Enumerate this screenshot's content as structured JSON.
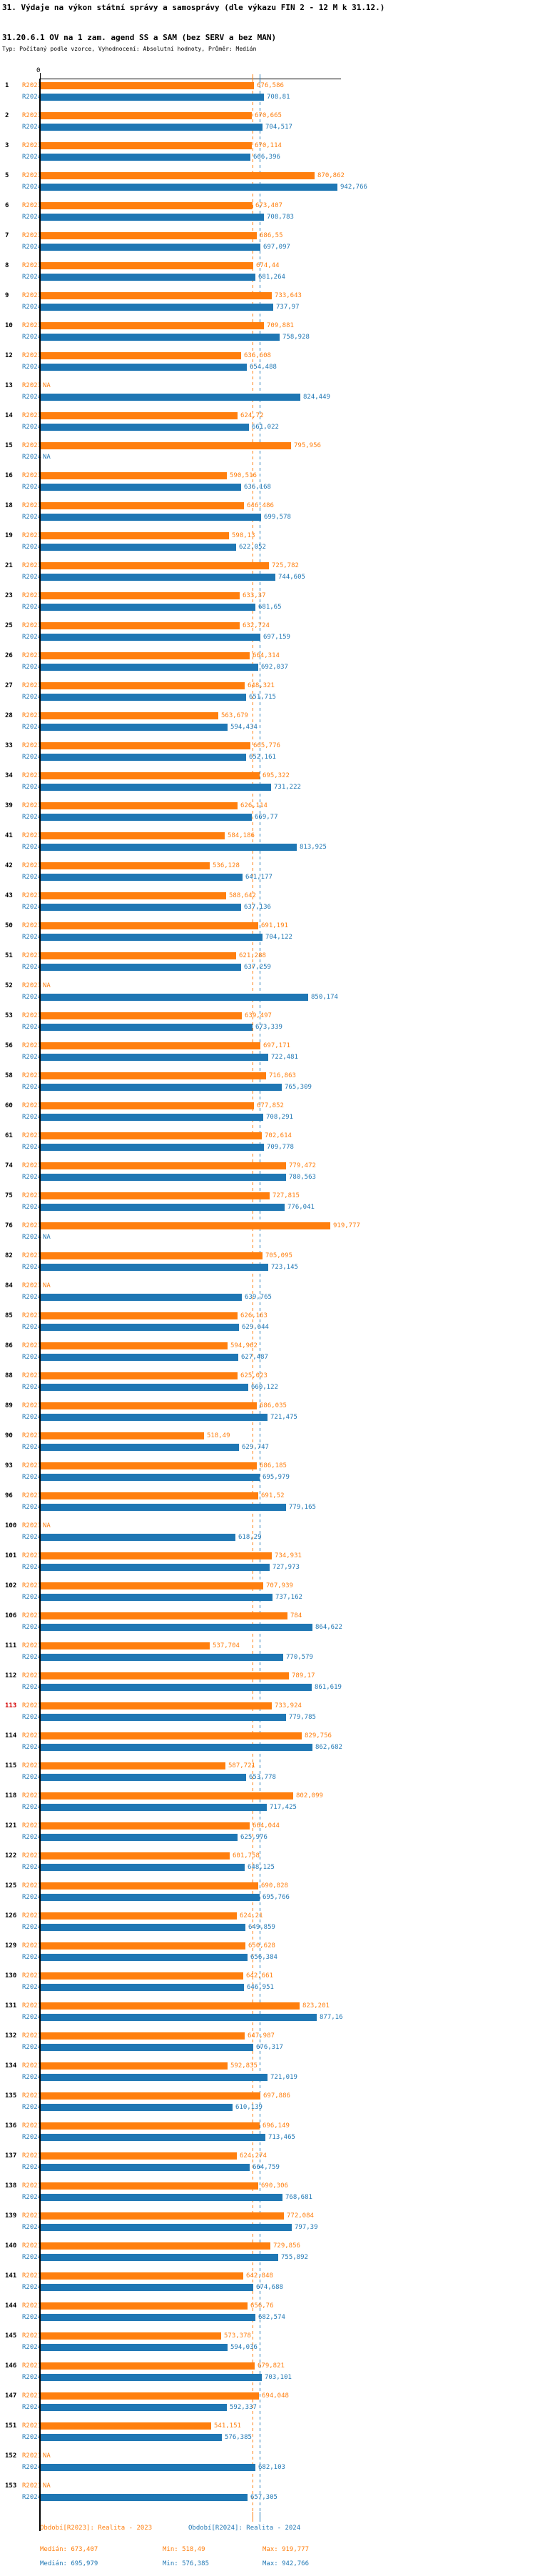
{
  "header": {
    "title": "31. Výdaje na výkon státní správy a samosprávy (dle výkazu FIN 2 - 12 M k 31.12.)",
    "subtitle": "31.20.6.1 OV na 1 zam. agend SS a SAM (bez SERV a bez MAN)",
    "meta": "Typ: Počítaný podle vzorce, Vyhodnocení: Absolutní hodnoty, Průměr: Medián"
  },
  "axis": {
    "zero_label": "0"
  },
  "colors": {
    "r2023": "#ff7f0e",
    "r2024": "#1f77b4",
    "highlight_id": "#d40000"
  },
  "chart_data": {
    "type": "bar",
    "orientation": "horizontal",
    "series_labels": {
      "r2023": "R2023",
      "r2024": "R2024"
    },
    "na_label": "NA",
    "value_note": "Czech decimal comma formatting, values verbatim from labels",
    "xlim": [
      0,
      950
    ],
    "medians": {
      "r2023": "673,407",
      "r2024": "695,979"
    },
    "min": {
      "r2023": "518,49",
      "r2024": "576,385"
    },
    "max": {
      "r2023": "919,777",
      "r2024": "942,766"
    },
    "highlight_ids": [
      "113"
    ],
    "rows": [
      {
        "id": "1",
        "r2023": "676,586",
        "r2024": "708,81"
      },
      {
        "id": "2",
        "r2023": "670,665",
        "r2024": "704,517"
      },
      {
        "id": "3",
        "r2023": "670,114",
        "r2024": "666,396"
      },
      {
        "id": "5",
        "r2023": "870,862",
        "r2024": "942,766"
      },
      {
        "id": "6",
        "r2023": "673,407",
        "r2024": "708,783"
      },
      {
        "id": "7",
        "r2023": "686,55",
        "r2024": "697,097"
      },
      {
        "id": "8",
        "r2023": "674,44",
        "r2024": "681,264"
      },
      {
        "id": "9",
        "r2023": "733,643",
        "r2024": "737,97"
      },
      {
        "id": "10",
        "r2023": "709,881",
        "r2024": "758,928"
      },
      {
        "id": "12",
        "r2023": "636,608",
        "r2024": "654,488"
      },
      {
        "id": "13",
        "r2023": "NA",
        "r2024": "824,449"
      },
      {
        "id": "14",
        "r2023": "624,72",
        "r2024": "661,022"
      },
      {
        "id": "15",
        "r2023": "795,956",
        "r2024": "NA"
      },
      {
        "id": "16",
        "r2023": "590,516",
        "r2024": "636,168"
      },
      {
        "id": "18",
        "r2023": "646,486",
        "r2024": "699,578"
      },
      {
        "id": "19",
        "r2023": "598,13",
        "r2024": "622,052"
      },
      {
        "id": "21",
        "r2023": "725,782",
        "r2024": "744,605"
      },
      {
        "id": "23",
        "r2023": "633,37",
        "r2024": "681,65"
      },
      {
        "id": "25",
        "r2023": "632,724",
        "r2024": "697,159"
      },
      {
        "id": "26",
        "r2023": "664,314",
        "r2024": "692,037"
      },
      {
        "id": "27",
        "r2023": "648,321",
        "r2024": "651,715"
      },
      {
        "id": "28",
        "r2023": "563,679",
        "r2024": "594,434"
      },
      {
        "id": "33",
        "r2023": "665,776",
        "r2024": "652,161"
      },
      {
        "id": "34",
        "r2023": "695,322",
        "r2024": "731,222"
      },
      {
        "id": "39",
        "r2023": "626,114",
        "r2024": "669,77"
      },
      {
        "id": "41",
        "r2023": "584,186",
        "r2024": "813,925"
      },
      {
        "id": "42",
        "r2023": "536,128",
        "r2024": "641,177"
      },
      {
        "id": "43",
        "r2023": "588,642",
        "r2024": "637,136"
      },
      {
        "id": "50",
        "r2023": "691,191",
        "r2024": "704,122"
      },
      {
        "id": "51",
        "r2023": "621,288",
        "r2024": "637,259"
      },
      {
        "id": "52",
        "r2023": "NA",
        "r2024": "850,174"
      },
      {
        "id": "53",
        "r2023": "639,497",
        "r2024": "673,339"
      },
      {
        "id": "56",
        "r2023": "697,171",
        "r2024": "722,481"
      },
      {
        "id": "58",
        "r2023": "716,863",
        "r2024": "765,309"
      },
      {
        "id": "60",
        "r2023": "677,852",
        "r2024": "708,291"
      },
      {
        "id": "61",
        "r2023": "702,614",
        "r2024": "709,778"
      },
      {
        "id": "74",
        "r2023": "779,472",
        "r2024": "780,563"
      },
      {
        "id": "75",
        "r2023": "727,815",
        "r2024": "776,041"
      },
      {
        "id": "76",
        "r2023": "919,777",
        "r2024": "NA"
      },
      {
        "id": "82",
        "r2023": "705,095",
        "r2024": "723,145"
      },
      {
        "id": "84",
        "r2023": "NA",
        "r2024": "639,765"
      },
      {
        "id": "85",
        "r2023": "626,163",
        "r2024": "629,644"
      },
      {
        "id": "86",
        "r2023": "594,962",
        "r2024": "627,487"
      },
      {
        "id": "88",
        "r2023": "625,023",
        "r2024": "660,122"
      },
      {
        "id": "89",
        "r2023": "686,035",
        "r2024": "721,475"
      },
      {
        "id": "90",
        "r2023": "518,49",
        "r2024": "629,747"
      },
      {
        "id": "93",
        "r2023": "686,185",
        "r2024": "695,979"
      },
      {
        "id": "96",
        "r2023": "691,52",
        "r2024": "779,165"
      },
      {
        "id": "100",
        "r2023": "NA",
        "r2024": "618,29"
      },
      {
        "id": "101",
        "r2023": "734,931",
        "r2024": "727,973"
      },
      {
        "id": "102",
        "r2023": "707,939",
        "r2024": "737,162"
      },
      {
        "id": "106",
        "r2023": "784",
        "r2024": "864,622"
      },
      {
        "id": "111",
        "r2023": "537,704",
        "r2024": "770,579"
      },
      {
        "id": "112",
        "r2023": "789,17",
        "r2024": "861,619"
      },
      {
        "id": "113",
        "r2023": "733,924",
        "r2024": "779,785"
      },
      {
        "id": "114",
        "r2023": "829,756",
        "r2024": "862,682"
      },
      {
        "id": "115",
        "r2023": "587,721",
        "r2024": "653,778"
      },
      {
        "id": "118",
        "r2023": "802,099",
        "r2024": "717,425"
      },
      {
        "id": "121",
        "r2023": "664,044",
        "r2024": "625,976"
      },
      {
        "id": "122",
        "r2023": "601,758",
        "r2024": "648,125"
      },
      {
        "id": "125",
        "r2023": "690,828",
        "r2024": "695,766"
      },
      {
        "id": "126",
        "r2023": "624,21",
        "r2024": "649,859"
      },
      {
        "id": "129",
        "r2023": "650,628",
        "r2024": "656,384"
      },
      {
        "id": "130",
        "r2023": "642,661",
        "r2024": "646,951"
      },
      {
        "id": "131",
        "r2023": "823,201",
        "r2024": "877,16"
      },
      {
        "id": "132",
        "r2023": "647,987",
        "r2024": "676,317"
      },
      {
        "id": "134",
        "r2023": "592,835",
        "r2024": "721,019"
      },
      {
        "id": "135",
        "r2023": "697,886",
        "r2024": "610,139"
      },
      {
        "id": "136",
        "r2023": "696,149",
        "r2024": "713,465"
      },
      {
        "id": "137",
        "r2023": "624,274",
        "r2024": "664,759"
      },
      {
        "id": "138",
        "r2023": "690,306",
        "r2024": "768,681"
      },
      {
        "id": "139",
        "r2023": "772,084",
        "r2024": "797,39"
      },
      {
        "id": "140",
        "r2023": "729,856",
        "r2024": "755,892"
      },
      {
        "id": "141",
        "r2023": "642,848",
        "r2024": "674,688"
      },
      {
        "id": "144",
        "r2023": "656,76",
        "r2024": "682,574"
      },
      {
        "id": "145",
        "r2023": "573,378",
        "r2024": "594,036"
      },
      {
        "id": "146",
        "r2023": "679,821",
        "r2024": "703,101"
      },
      {
        "id": "147",
        "r2023": "694,048",
        "r2024": "592,337"
      },
      {
        "id": "151",
        "r2023": "541,151",
        "r2024": "576,385"
      },
      {
        "id": "152",
        "r2023": "NA",
        "r2024": "682,103"
      },
      {
        "id": "153",
        "r2023": "NA",
        "r2024": "657,305"
      }
    ]
  },
  "footer": {
    "legend_r2023": "Období[R2023]: Realita - 2023",
    "legend_r2024": "Období[R2024]: Realita - 2024",
    "stats_r2023": {
      "median": "Medián: 673,407",
      "min": "Min: 518,49",
      "max": "Max: 919,777"
    },
    "stats_r2024": {
      "median": "Medián: 695,979",
      "min": "Min: 576,385",
      "max": "Max: 942,766"
    }
  }
}
